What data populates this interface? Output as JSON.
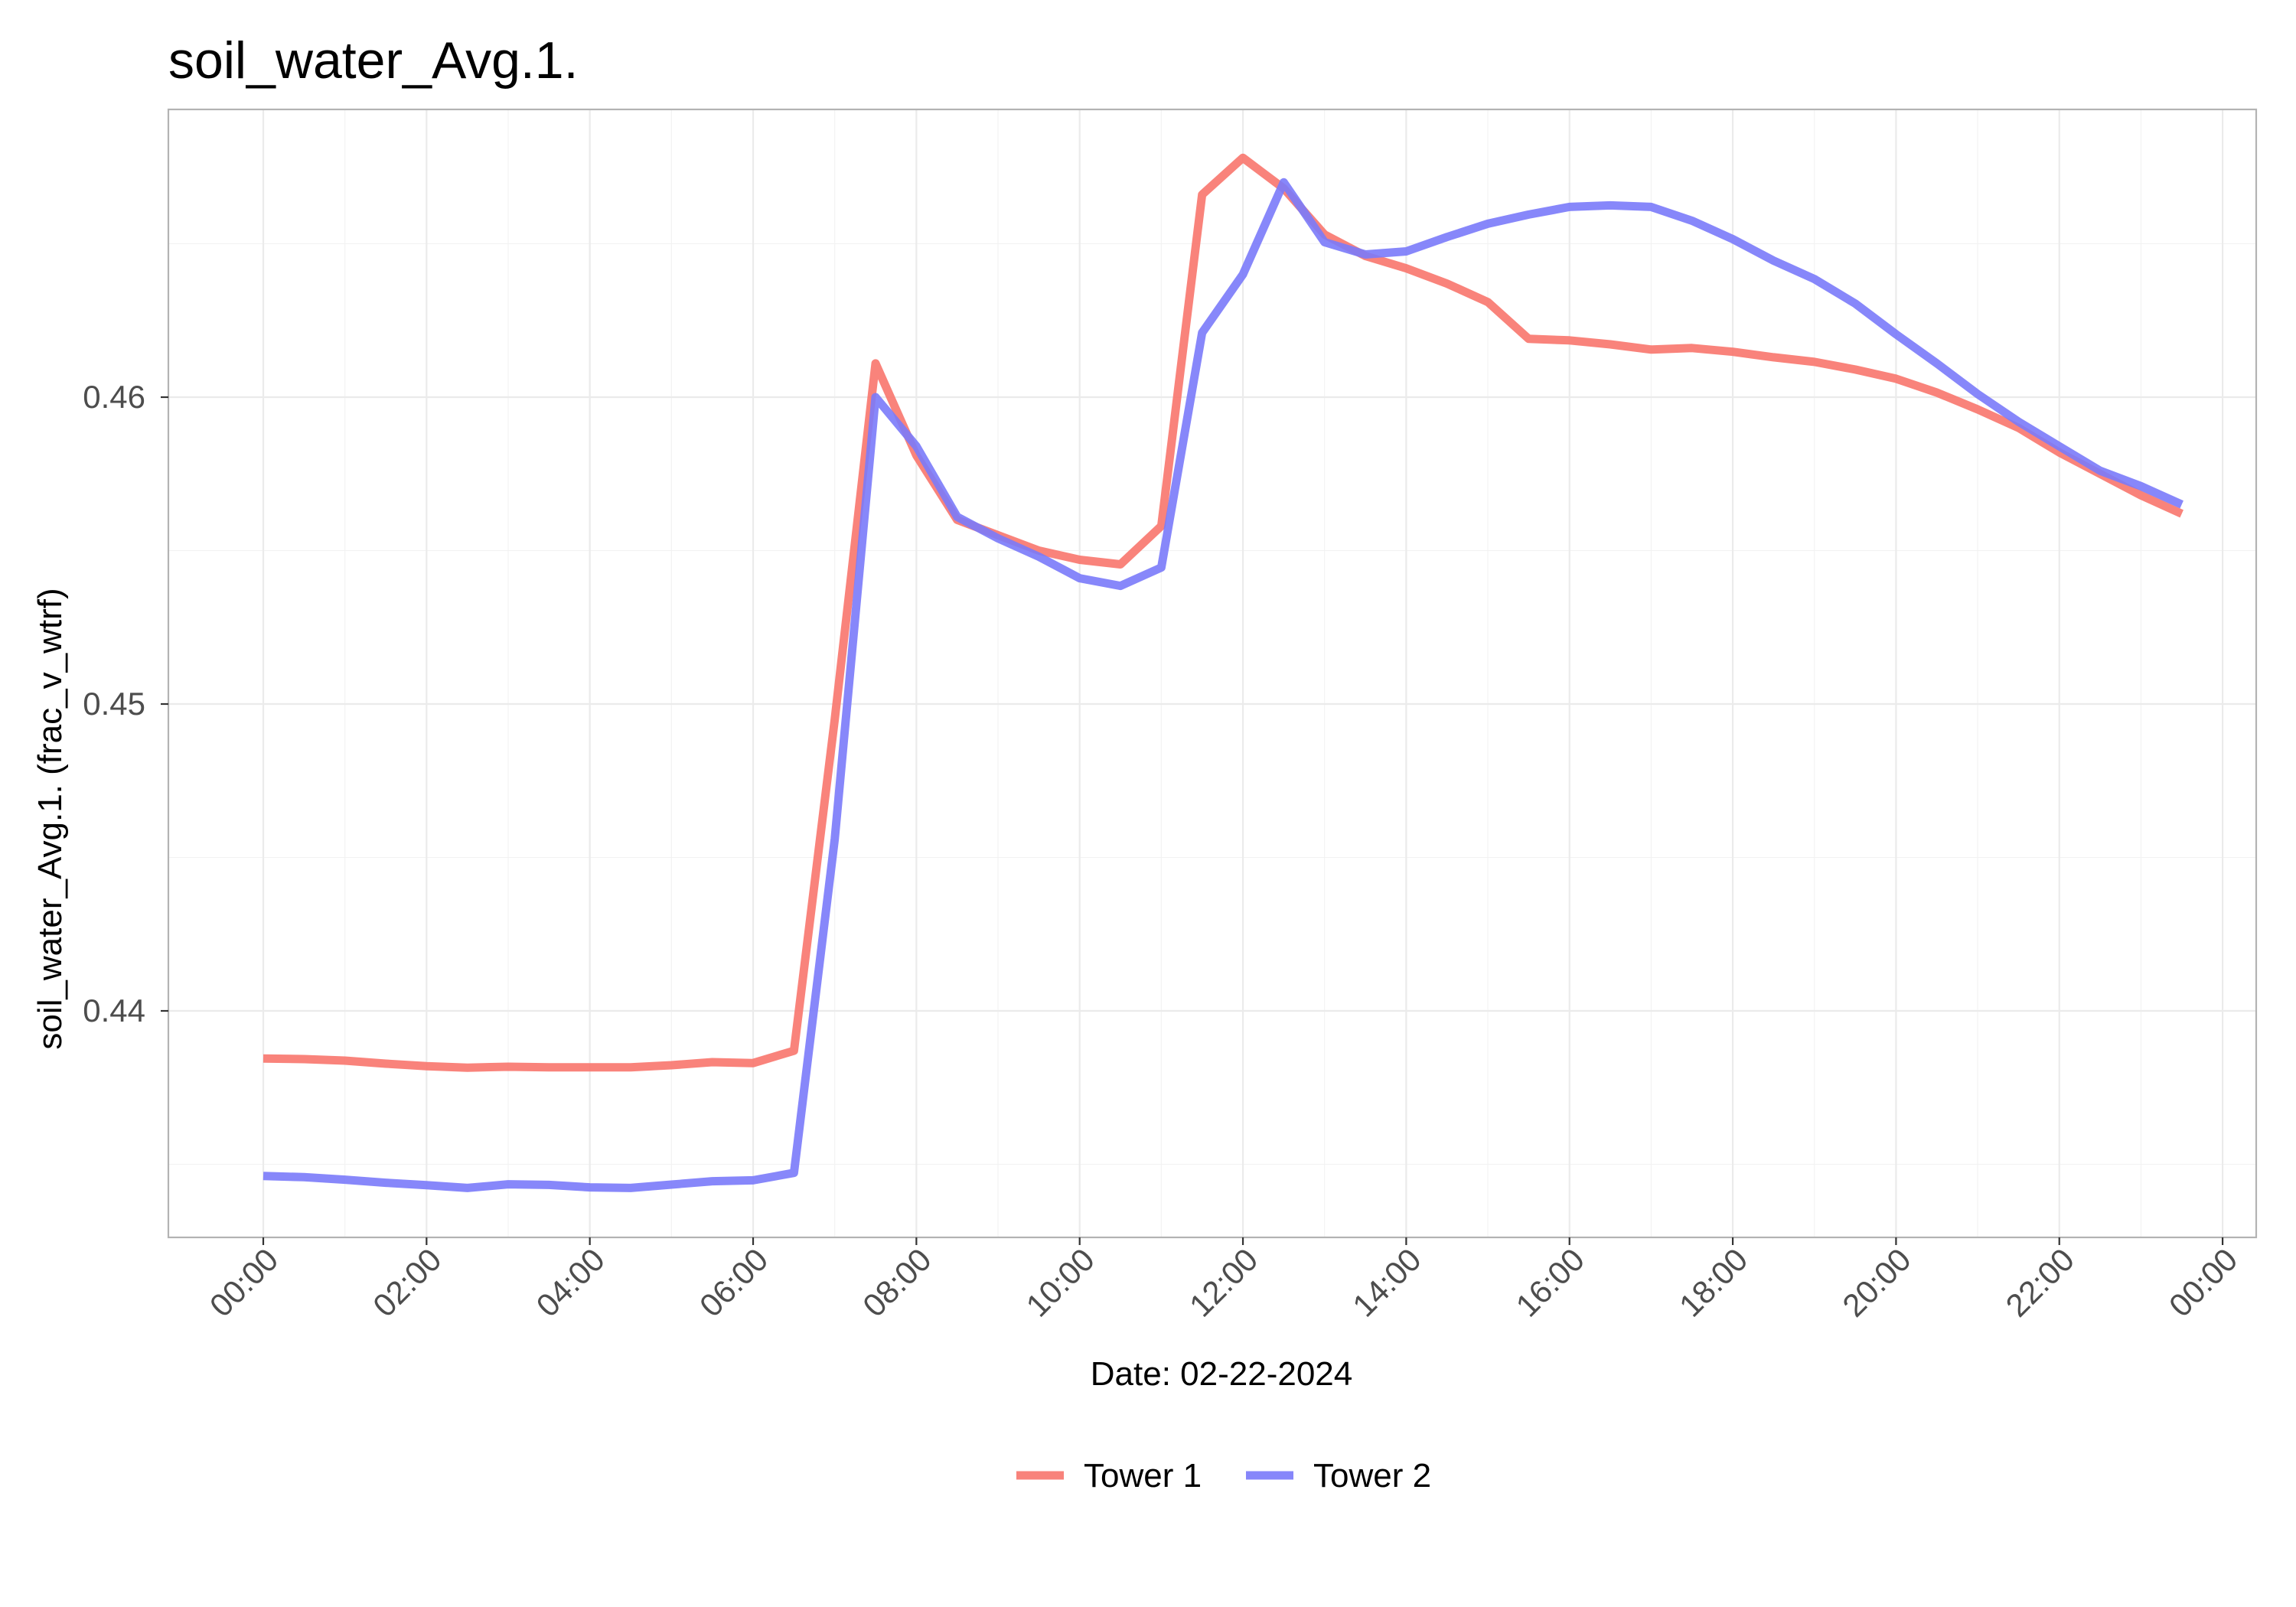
{
  "chart_data": {
    "type": "line",
    "title": "soil_water_Avg.1.",
    "xlabel": "Date: 02-22-2024",
    "ylabel": "soil_water_Avg.1. (frac_v_wtrf)",
    "x_unit": "time of day (02-22-2024)",
    "xlim": [
      "00:00",
      "00:00 next day"
    ],
    "ylim": [
      0.4325,
      0.4695
    ],
    "x_ticks": [
      "00:00",
      "02:00",
      "04:00",
      "06:00",
      "08:00",
      "10:00",
      "12:00",
      "14:00",
      "16:00",
      "18:00",
      "20:00",
      "22:00",
      "00:00"
    ],
    "y_ticks": [
      0.44,
      0.45,
      0.46
    ],
    "y_tick_labels": [
      "0.44",
      "0.45",
      "0.46"
    ],
    "grid": true,
    "legend_position": "bottom",
    "x": [
      "00:00",
      "00:30",
      "01:00",
      "01:30",
      "02:00",
      "02:30",
      "03:00",
      "03:30",
      "04:00",
      "04:30",
      "05:00",
      "05:30",
      "06:00",
      "06:30",
      "07:00",
      "07:30",
      "08:00",
      "08:30",
      "09:00",
      "09:30",
      "10:00",
      "10:30",
      "11:00",
      "11:30",
      "12:00",
      "12:30",
      "13:00",
      "13:30",
      "14:00",
      "14:30",
      "15:00",
      "15:30",
      "16:00",
      "16:30",
      "17:00",
      "17:30",
      "18:00",
      "18:30",
      "19:00",
      "19:30",
      "20:00",
      "20:30",
      "21:00",
      "21:30",
      "22:00",
      "22:30",
      "23:00",
      "23:30"
    ],
    "series": [
      {
        "name": "Tower 1",
        "color": "#F8766D",
        "values": [
          0.43845,
          0.43843,
          0.43838,
          0.43828,
          0.4382,
          0.43815,
          0.43818,
          0.43816,
          0.43816,
          0.43816,
          0.43823,
          0.43833,
          0.4383,
          0.4387,
          0.4495,
          0.4611,
          0.4581,
          0.456,
          0.4555,
          0.455,
          0.4547,
          0.45455,
          0.4558,
          0.4666,
          0.4678,
          0.4668,
          0.4653,
          0.4646,
          0.4642,
          0.4637,
          0.4631,
          0.4619,
          0.46185,
          0.46172,
          0.46155,
          0.4616,
          0.46148,
          0.4613,
          0.46115,
          0.4609,
          0.4606,
          0.46015,
          0.4596,
          0.459,
          0.4582,
          0.4575,
          0.4568,
          0.4562
        ]
      },
      {
        "name": "Tower 2",
        "color": "#7A7AFA",
        "values": [
          0.43462,
          0.43458,
          0.4345,
          0.4344,
          0.43432,
          0.43423,
          0.43435,
          0.43433,
          0.43425,
          0.43423,
          0.43434,
          0.43445,
          0.43448,
          0.43472,
          0.4456,
          0.46,
          0.4584,
          0.4561,
          0.4554,
          0.4548,
          0.4541,
          0.45385,
          0.45445,
          0.4621,
          0.464,
          0.467,
          0.46505,
          0.46465,
          0.46475,
          0.46522,
          0.46565,
          0.46595,
          0.4662,
          0.46625,
          0.4662,
          0.46575,
          0.46515,
          0.46445,
          0.46385,
          0.46305,
          0.46205,
          0.4611,
          0.4601,
          0.4592,
          0.4584,
          0.4576,
          0.4571,
          0.4565
        ]
      }
    ]
  }
}
